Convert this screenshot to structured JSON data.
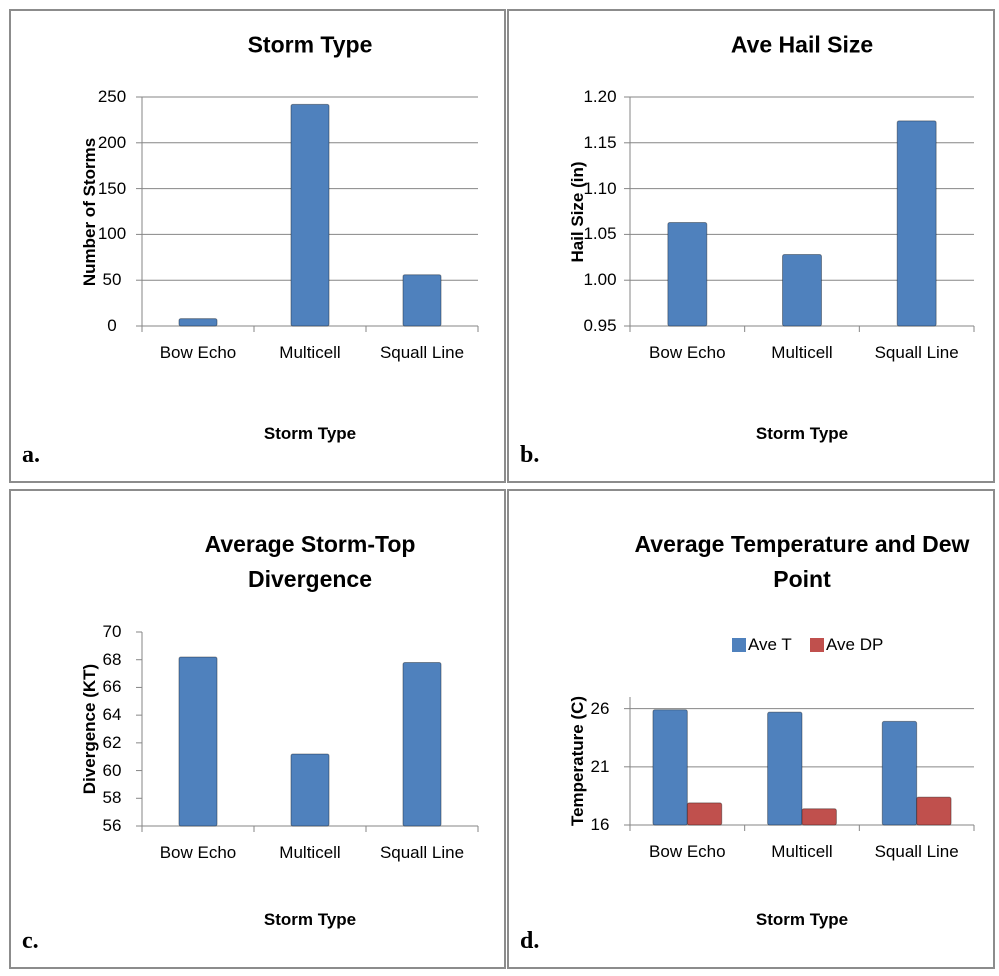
{
  "chart_data": [
    {
      "type": "bar",
      "panel_label": "a.",
      "title": "Storm Type",
      "x_label": "Storm Type",
      "y_label": "Number of Storms",
      "categories": [
        "Bow Echo",
        "Multicell",
        "Squall Line"
      ],
      "series": [
        {
          "name": "Number of Storms",
          "color": "#4f81bd",
          "values": [
            8,
            242,
            56
          ]
        }
      ],
      "ylim": [
        0,
        250
      ],
      "yticks": [
        0,
        50,
        100,
        150,
        200,
        250
      ],
      "grid": true,
      "legend": false
    },
    {
      "type": "bar",
      "panel_label": "b.",
      "title": "Ave Hail Size",
      "x_label": "Storm Type",
      "y_label": "Hail Size (in)",
      "categories": [
        "Bow Echo",
        "Multicell",
        "Squall Line"
      ],
      "series": [
        {
          "name": "Hail Size",
          "color": "#4f81bd",
          "values": [
            1.063,
            1.028,
            1.174
          ]
        }
      ],
      "ylim": [
        0.95,
        1.2
      ],
      "yticks": [
        0.95,
        {
          "value": 1,
          "label": "1.00"
        },
        1.05,
        {
          "value": 1.1,
          "label": "1.10"
        },
        1.15,
        {
          "value": 1.2,
          "label": "1.20"
        }
      ],
      "grid": true,
      "legend": false
    },
    {
      "type": "bar",
      "panel_label": "c.",
      "title": "Average Storm-Top Divergence",
      "x_label": "Storm Type",
      "y_label": "Divergence (KT)",
      "categories": [
        "Bow Echo",
        "Multicell",
        "Squall Line"
      ],
      "series": [
        {
          "name": "Divergence",
          "color": "#4f81bd",
          "values": [
            68.2,
            61.2,
            67.8
          ]
        }
      ],
      "ylim": [
        56,
        70
      ],
      "yticks": [
        56,
        58,
        60,
        62,
        64,
        66,
        68,
        70
      ],
      "grid": false,
      "legend": false
    },
    {
      "type": "bar",
      "panel_label": "d.",
      "title": "Average Temperature and Dew Point",
      "x_label": "Storm Type",
      "y_label": "Temperature (C)",
      "categories": [
        "Bow Echo",
        "Multicell",
        "Squall Line"
      ],
      "series": [
        {
          "name": "Ave T",
          "color": "#4f81bd",
          "values": [
            25.9,
            25.7,
            24.9
          ]
        },
        {
          "name": "Ave DP",
          "color": "#c0504d",
          "values": [
            17.9,
            17.4,
            18.4
          ]
        }
      ],
      "ylim": [
        16,
        27
      ],
      "yticks": [
        16,
        21,
        26
      ],
      "grid": true,
      "legend": "top"
    }
  ]
}
